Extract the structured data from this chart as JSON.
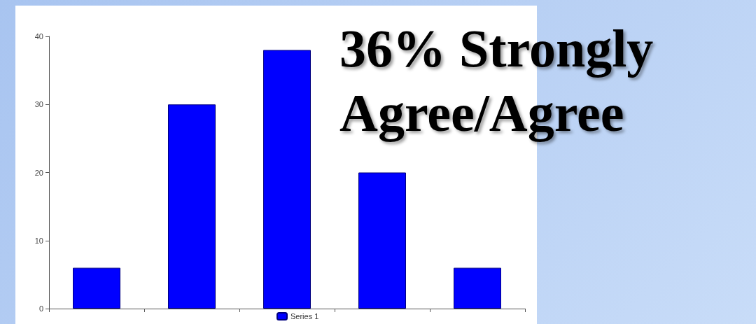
{
  "chart_data": {
    "type": "bar",
    "title": "36% Strongly Agree/Agree",
    "categories": [
      null,
      null,
      null,
      null,
      null
    ],
    "series": [
      {
        "name": "Series 1",
        "color": "#0000ff",
        "values": [
          6,
          30,
          38,
          20,
          6
        ]
      }
    ],
    "ylim": [
      0,
      40
    ],
    "yticks": [
      0,
      10,
      20,
      30,
      40
    ],
    "grid": false,
    "legend": "bottom",
    "tick_labels": "y"
  }
}
